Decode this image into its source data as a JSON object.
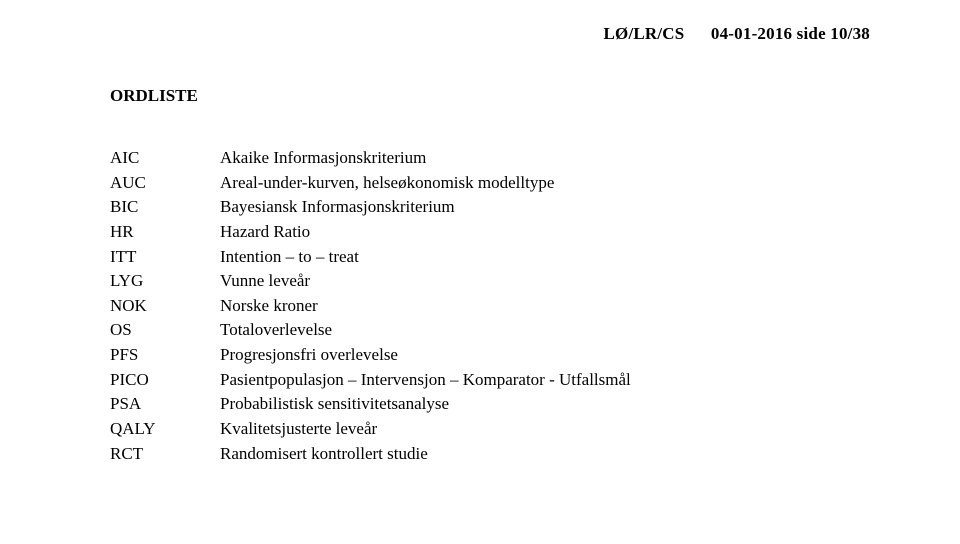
{
  "header": {
    "doc_code": "LØ/LR/CS",
    "date_page": "04-01-2016  side 10/38"
  },
  "title": "ORDLISTE",
  "glossary": [
    {
      "abbr": "AIC",
      "def": "Akaike Informasjonskriterium"
    },
    {
      "abbr": "AUC",
      "def": "Areal-under-kurven, helseøkonomisk modelltype"
    },
    {
      "abbr": "BIC",
      "def": "Bayesiansk Informasjonskriterium"
    },
    {
      "abbr": "HR",
      "def": "Hazard Ratio"
    },
    {
      "abbr": "ITT",
      "def": "Intention – to – treat"
    },
    {
      "abbr": "LYG",
      "def": "Vunne leveår"
    },
    {
      "abbr": "NOK",
      "def": "Norske kroner"
    },
    {
      "abbr": "OS",
      "def": "Totaloverlevelse"
    },
    {
      "abbr": "PFS",
      "def": "Progresjonsfri overlevelse"
    },
    {
      "abbr": "PICO",
      "def": "Pasientpopulasjon – Intervensjon – Komparator - Utfallsmål"
    },
    {
      "abbr": "PSA",
      "def": "Probabilistisk sensitivitetsanalyse"
    },
    {
      "abbr": "QALY",
      "def": "Kvalitetsjusterte leveår"
    },
    {
      "abbr": "RCT",
      "def": "Randomisert kontrollert studie"
    }
  ]
}
